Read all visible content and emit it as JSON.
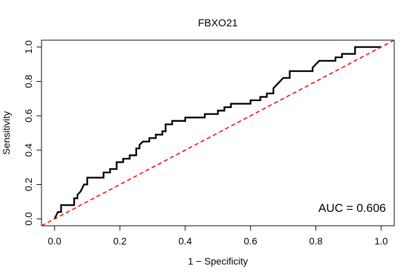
{
  "chart_data": {
    "type": "line",
    "title": "FBXO21",
    "xlabel": "1 − Specificity",
    "ylabel": "Sensitivity",
    "annotation": "AUC = 0.606",
    "xlim": [
      -0.04,
      1.04
    ],
    "ylim": [
      -0.04,
      1.04
    ],
    "xticks": [
      {
        "value": 0,
        "label": "0.0"
      },
      0.2,
      0.4,
      0.6,
      0.8,
      {
        "value": 1,
        "label": "1.0"
      }
    ],
    "yticks": [
      {
        "value": 0,
        "label": "0.0"
      },
      0.2,
      0.4,
      0.6,
      0.8,
      {
        "value": 1,
        "label": "1.0"
      }
    ],
    "series": [
      {
        "color": "#000000",
        "linestyle": "solid",
        "x": [
          0,
          0.01,
          0.02,
          0.02,
          0.06,
          0.06,
          0.07,
          0.07,
          0.08,
          0.09,
          0.1,
          0.1,
          0.15,
          0.15,
          0.17,
          0.17,
          0.19,
          0.19,
          0.21,
          0.21,
          0.23,
          0.23,
          0.25,
          0.25,
          0.26,
          0.26,
          0.27,
          0.29,
          0.29,
          0.31,
          0.31,
          0.33,
          0.33,
          0.34,
          0.34,
          0.36,
          0.36,
          0.4,
          0.4,
          0.46,
          0.46,
          0.5,
          0.5,
          0.52,
          0.52,
          0.54,
          0.54,
          0.6,
          0.6,
          0.63,
          0.63,
          0.65,
          0.65,
          0.67,
          0.67,
          0.68,
          0.69,
          0.7,
          0.72,
          0.72,
          0.79,
          0.79,
          0.8,
          0.81,
          0.86,
          0.86,
          0.88,
          0.88,
          0.92,
          0.92,
          1
        ],
        "values": [
          0,
          0.04,
          0.04,
          0.08,
          0.08,
          0.12,
          0.12,
          0.14,
          0.16,
          0.2,
          0.2,
          0.24,
          0.24,
          0.27,
          0.27,
          0.29,
          0.29,
          0.33,
          0.33,
          0.35,
          0.35,
          0.37,
          0.37,
          0.41,
          0.41,
          0.43,
          0.45,
          0.45,
          0.47,
          0.47,
          0.49,
          0.49,
          0.51,
          0.51,
          0.55,
          0.55,
          0.57,
          0.57,
          0.59,
          0.59,
          0.61,
          0.61,
          0.63,
          0.63,
          0.65,
          0.65,
          0.67,
          0.67,
          0.69,
          0.69,
          0.71,
          0.71,
          0.73,
          0.73,
          0.76,
          0.78,
          0.8,
          0.82,
          0.82,
          0.86,
          0.86,
          0.88,
          0.9,
          0.92,
          0.92,
          0.94,
          0.94,
          0.96,
          0.96,
          1,
          1
        ]
      },
      {
        "color": "#ff0000",
        "linestyle": "dashed",
        "x": [
          -0.04,
          1.04
        ],
        "values": [
          -0.04,
          1.04
        ]
      }
    ]
  }
}
